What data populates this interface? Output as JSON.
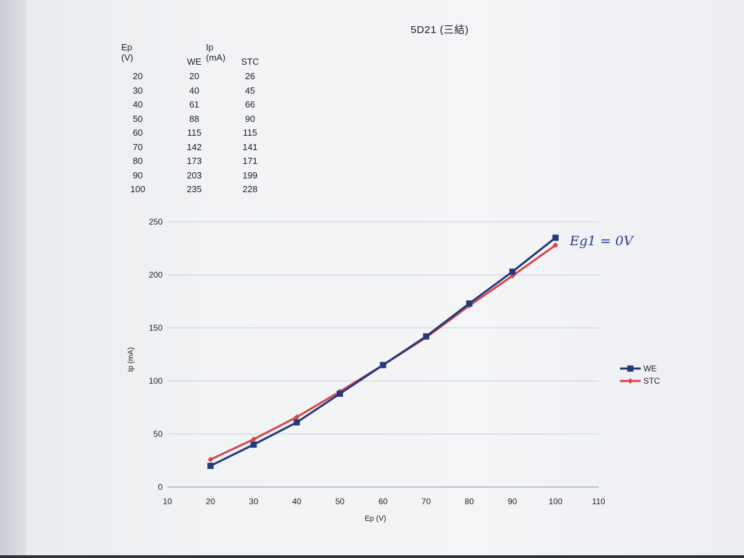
{
  "page": {
    "title": "5D21 (三結)"
  },
  "data_table": {
    "header_ep": "Ep  (V)",
    "header_ip": "Ip (mA)",
    "col_we": "WE",
    "col_stc": "STC",
    "rows": [
      [
        "20",
        "20",
        "26"
      ],
      [
        "30",
        "40",
        "45"
      ],
      [
        "40",
        "61",
        "66"
      ],
      [
        "50",
        "88",
        "90"
      ],
      [
        "60",
        "115",
        "115"
      ],
      [
        "70",
        "142",
        "141"
      ],
      [
        "80",
        "173",
        "171"
      ],
      [
        "90",
        "203",
        "199"
      ],
      [
        "100",
        "235",
        "228"
      ]
    ]
  },
  "chart_data": {
    "type": "line",
    "title": "",
    "xlabel": "Ep (V)",
    "ylabel": "Ip (mA)",
    "xlim": [
      10,
      110
    ],
    "ylim": [
      0,
      250
    ],
    "xticks": [
      10,
      20,
      30,
      40,
      50,
      60,
      70,
      80,
      90,
      100,
      110
    ],
    "yticks": [
      0,
      50,
      100,
      150,
      200,
      250
    ],
    "grid": "horizontal",
    "legend_position": "right",
    "x": [
      20,
      30,
      40,
      50,
      60,
      70,
      80,
      90,
      100
    ],
    "series": [
      {
        "name": "WE",
        "values": [
          20,
          40,
          61,
          88,
          115,
          142,
          173,
          203,
          235
        ],
        "color": "#223a7a",
        "marker": "square"
      },
      {
        "name": "STC",
        "values": [
          26,
          45,
          66,
          90,
          115,
          141,
          171,
          199,
          228
        ],
        "color": "#d8444b",
        "marker": "diamond"
      }
    ],
    "annotation": "Eg1 = 0V"
  }
}
